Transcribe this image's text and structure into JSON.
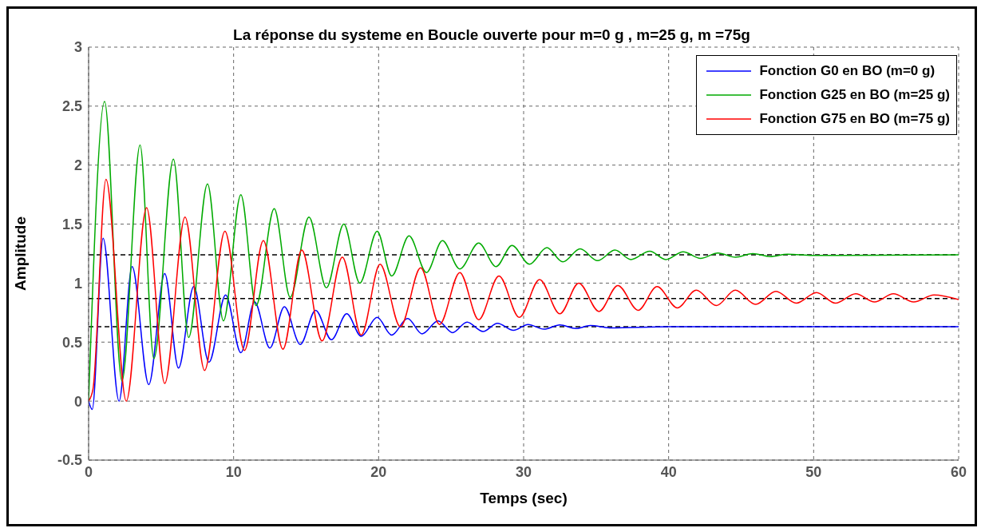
{
  "chart_data": {
    "type": "line",
    "title": "La réponse du systeme en Boucle ouverte pour m=0 g , m=25 g, m =75g",
    "xlabel": "Temps (sec)",
    "ylabel": "Amplitude",
    "xlim": [
      0,
      60
    ],
    "ylim": [
      -0.5,
      3
    ],
    "xticks": [
      0,
      10,
      20,
      30,
      40,
      50,
      60
    ],
    "yticks": [
      -0.5,
      0,
      0.5,
      1,
      1.5,
      2,
      2.5,
      3
    ],
    "grid": true,
    "legend": "top right",
    "marker": "none",
    "line_style": "solid",
    "ref_lines": [
      {
        "axis": "y",
        "value": 1.24,
        "color": "#000000",
        "line_style": "dashed"
      },
      {
        "axis": "y",
        "value": 0.87,
        "color": "#000000",
        "line_style": "dashed"
      },
      {
        "axis": "y",
        "value": 0.63,
        "color": "#000000",
        "line_style": "dashed"
      }
    ],
    "series": [
      {
        "name": "Fonction G0 en BO (m=0 g)",
        "color": "#0000ff",
        "x": [
          0,
          0.25,
          1.0,
          2.1,
          3.0,
          4.15,
          5.25,
          6.2,
          7.25,
          8.3,
          9.45,
          10.5,
          11.45,
          12.5,
          13.5,
          14.6,
          15.65,
          16.75,
          17.8,
          18.8,
          19.9,
          20.9,
          22.0,
          23.0,
          24.1,
          25.1,
          26.1,
          27.2,
          28.2,
          29.3,
          30.3,
          31.4,
          32.5,
          33.6,
          34.6,
          36,
          40,
          60
        ],
        "values": [
          0,
          -0.07,
          1.38,
          0,
          1.14,
          0.14,
          1.08,
          0.28,
          0.97,
          0.33,
          0.9,
          0.41,
          0.84,
          0.45,
          0.8,
          0.48,
          0.77,
          0.52,
          0.74,
          0.55,
          0.71,
          0.56,
          0.7,
          0.57,
          0.68,
          0.58,
          0.67,
          0.59,
          0.66,
          0.6,
          0.65,
          0.61,
          0.645,
          0.615,
          0.64,
          0.62,
          0.63,
          0.63
        ]
      },
      {
        "name": "Fonction G25 en BO (m=25 g)",
        "color": "#00aa00",
        "x": [
          0,
          1.1,
          2.3,
          3.55,
          4.5,
          5.85,
          6.9,
          8.2,
          9.3,
          10.5,
          11.55,
          12.8,
          13.9,
          15.2,
          16.4,
          17.6,
          18.7,
          19.9,
          20.9,
          22.1,
          23.3,
          24.4,
          25.6,
          26.9,
          28.1,
          29.2,
          30.4,
          31.6,
          32.7,
          33.9,
          35.1,
          36.3,
          37.4,
          38.7,
          39.8,
          41,
          42.2,
          43.4,
          44.6,
          45.8,
          47,
          48.2,
          50,
          60
        ],
        "values": [
          0,
          2.54,
          0.17,
          2.17,
          0.36,
          2.05,
          0.54,
          1.84,
          0.68,
          1.75,
          0.81,
          1.63,
          0.88,
          1.56,
          0.96,
          1.5,
          1.0,
          1.44,
          1.06,
          1.4,
          1.09,
          1.36,
          1.12,
          1.34,
          1.14,
          1.32,
          1.16,
          1.3,
          1.18,
          1.29,
          1.19,
          1.28,
          1.2,
          1.27,
          1.2,
          1.265,
          1.21,
          1.255,
          1.22,
          1.25,
          1.225,
          1.245,
          1.235,
          1.24
        ]
      },
      {
        "name": "Fonction G75 en BO (m=75 g)",
        "color": "#ff0000",
        "x": [
          0,
          0.3,
          1.2,
          2.6,
          4.0,
          5.25,
          6.65,
          8.0,
          9.4,
          10.75,
          12.05,
          13.4,
          14.7,
          16.1,
          17.5,
          18.8,
          20.1,
          21.5,
          22.9,
          24.2,
          25.6,
          26.9,
          28.3,
          29.7,
          31.1,
          32.5,
          33.8,
          35.2,
          36.5,
          37.9,
          39.2,
          40.6,
          41.9,
          43.3,
          44.6,
          46.0,
          47.4,
          48.8,
          50.2,
          51.5,
          52.9,
          54.2,
          55.5,
          56.9,
          58.3,
          60
        ],
        "values": [
          0,
          0.1,
          1.88,
          0,
          1.64,
          0.15,
          1.56,
          0.26,
          1.44,
          0.43,
          1.36,
          0.44,
          1.28,
          0.51,
          1.22,
          0.56,
          1.16,
          0.63,
          1.13,
          0.65,
          1.09,
          0.69,
          1.06,
          0.71,
          1.03,
          0.74,
          1.0,
          0.76,
          0.98,
          0.77,
          0.97,
          0.79,
          0.94,
          0.81,
          0.94,
          0.82,
          0.93,
          0.83,
          0.92,
          0.83,
          0.91,
          0.84,
          0.91,
          0.84,
          0.9,
          0.86
        ]
      }
    ]
  }
}
